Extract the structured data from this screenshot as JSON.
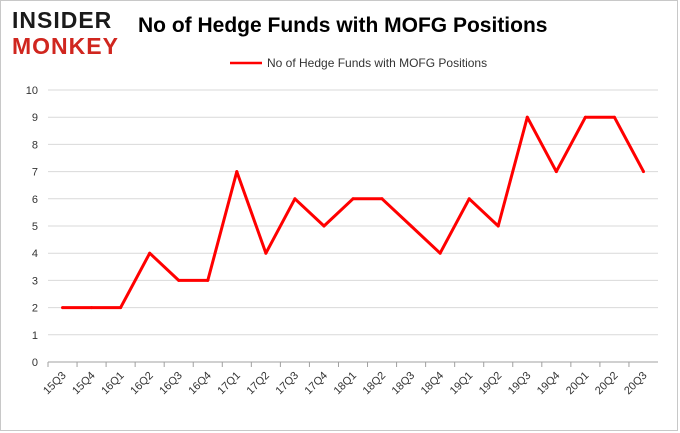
{
  "logo": {
    "line1": "INSIDER",
    "line2": "MONKEY",
    "color_dark": "#1a1a1a",
    "color_red": "#d0261f"
  },
  "chart_data": {
    "type": "line",
    "title": "No of Hedge Funds with MOFG Positions",
    "xlabel": "",
    "ylabel": "",
    "ylim": [
      0,
      10
    ],
    "yticks": [
      0,
      1,
      2,
      3,
      4,
      5,
      6,
      7,
      8,
      9,
      10
    ],
    "categories": [
      "15Q3",
      "15Q4",
      "16Q1",
      "16Q2",
      "16Q3",
      "16Q4",
      "17Q1",
      "17Q2",
      "17Q3",
      "17Q4",
      "18Q1",
      "18Q2",
      "18Q3",
      "18Q4",
      "19Q1",
      "19Q2",
      "19Q3",
      "19Q4",
      "20Q1",
      "20Q2",
      "20Q3"
    ],
    "series": [
      {
        "name": "No of Hedge Funds with MOFG Positions",
        "color": "#ff0000",
        "values": [
          2,
          2,
          2,
          4,
          3,
          3,
          7,
          4,
          6,
          5,
          6,
          6,
          5,
          4,
          6,
          5,
          9,
          7,
          9,
          9,
          7
        ]
      }
    ],
    "grid": true,
    "legend": "top-center"
  }
}
